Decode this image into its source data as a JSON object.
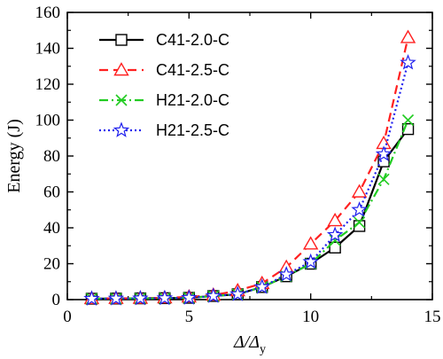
{
  "chart_data": {
    "type": "line",
    "xlabel_main": "Δ/Δ",
    "xlabel_sub": "y",
    "ylabel": "Energy (J)",
    "xlim": [
      0,
      15
    ],
    "ylim": [
      0,
      160
    ],
    "xticks": [
      "0",
      "5",
      "10",
      "15"
    ],
    "yticks": [
      "0",
      "20",
      "40",
      "60",
      "80",
      "100",
      "120",
      "140",
      "160"
    ],
    "grid": false,
    "legend_position": "top-left",
    "x": [
      1,
      2,
      3,
      4,
      5,
      6,
      7,
      8,
      9,
      10,
      11,
      12,
      13,
      14
    ],
    "series": [
      {
        "name": "C41-2.0-C",
        "color": "#000000",
        "dash": "solid",
        "marker": "square",
        "values": [
          0.5,
          0.6,
          0.7,
          0.8,
          1.0,
          2.0,
          3.0,
          7.0,
          13.0,
          20.0,
          29.0,
          41.0,
          77.0,
          95.0
        ]
      },
      {
        "name": "C41-2.5-C",
        "color": "#ff2020",
        "dash": "dash",
        "marker": "triangle",
        "values": [
          0.6,
          0.7,
          0.8,
          1.0,
          1.5,
          2.5,
          5.0,
          9.0,
          18.0,
          31.0,
          44.0,
          60.0,
          87.0,
          146.0
        ]
      },
      {
        "name": "H21-2.0-C",
        "color": "#22cc22",
        "dash": "dashdot",
        "marker": "x",
        "values": [
          0.5,
          0.6,
          0.7,
          0.8,
          1.0,
          2.0,
          3.0,
          7.0,
          13.0,
          20.0,
          33.0,
          43.0,
          67.0,
          100.0
        ]
      },
      {
        "name": "H21-2.5-C",
        "color": "#2020ee",
        "dash": "dot",
        "marker": "star",
        "values": [
          0.5,
          0.6,
          0.7,
          0.8,
          1.0,
          2.0,
          3.0,
          7.0,
          14.0,
          21.0,
          36.0,
          50.0,
          81.0,
          132.0
        ]
      }
    ]
  }
}
